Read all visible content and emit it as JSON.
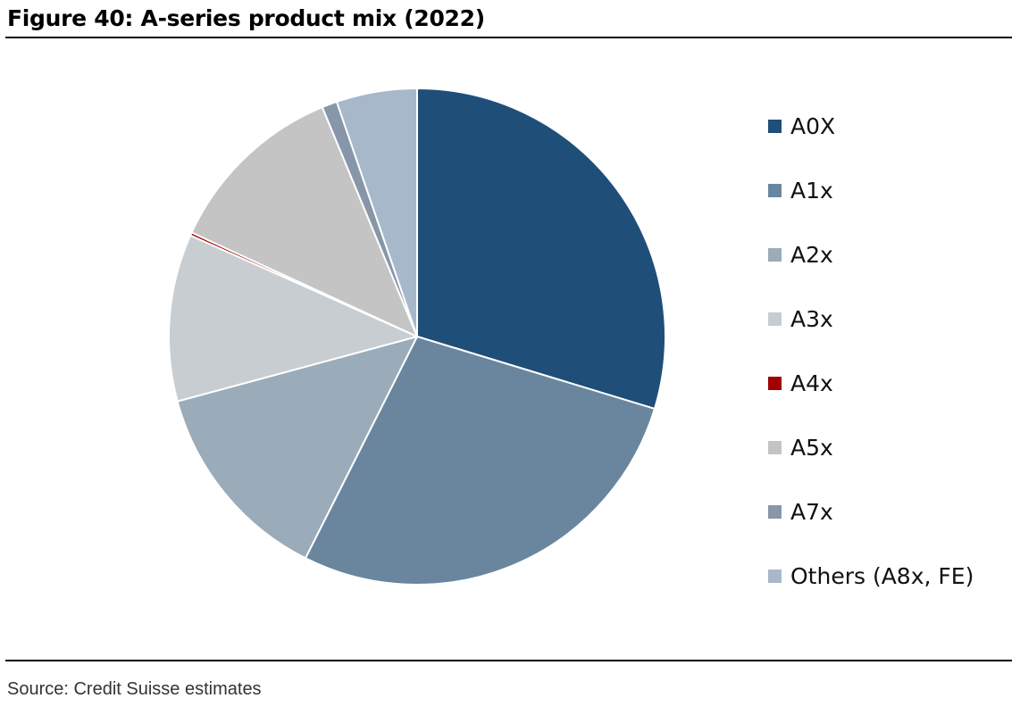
{
  "title": "Figure 40: A-series product mix (2022)",
  "source": "Source: Credit Suisse estimates",
  "chart_data": {
    "type": "pie",
    "title": "Figure 40: A-series product mix (2022)",
    "legend_position": "right",
    "slices": [
      {
        "name": "A0X",
        "value": 30.0,
        "color": "#1f4e79"
      },
      {
        "name": "A1x",
        "value": 28.0,
        "color": "#6a869e"
      },
      {
        "name": "A2x",
        "value": 13.5,
        "color": "#9aabb9"
      },
      {
        "name": "A3x",
        "value": 11.0,
        "color": "#c8cdd1"
      },
      {
        "name": "A4x",
        "value": 0.2,
        "color": "#a00000"
      },
      {
        "name": "A5x",
        "value": 12.0,
        "color": "#c4c4c4"
      },
      {
        "name": "A7x",
        "value": 1.0,
        "color": "#8796a8"
      },
      {
        "name": "Others (A8x, FE)",
        "value": 5.3,
        "color": "#a7b8cb"
      }
    ]
  }
}
